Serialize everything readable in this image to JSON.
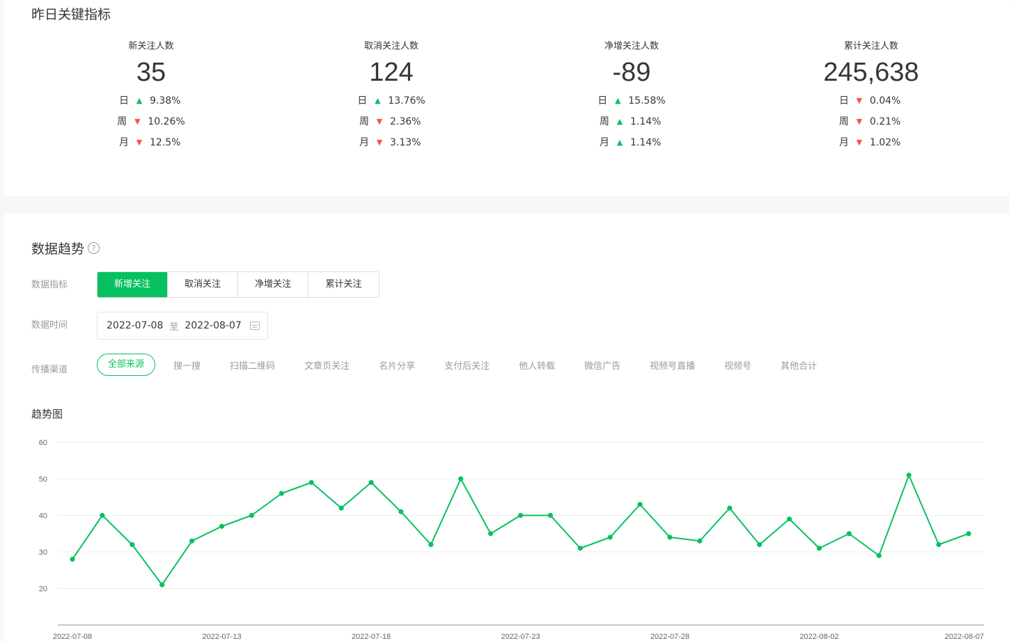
{
  "kpi_section": {
    "title": "昨日关键指标",
    "items": [
      {
        "label": "新关注人数",
        "value": "35",
        "rows": [
          {
            "period": "日",
            "dir": "up",
            "pct": "9.38%"
          },
          {
            "period": "周",
            "dir": "down",
            "pct": "10.26%"
          },
          {
            "period": "月",
            "dir": "down",
            "pct": "12.5%"
          }
        ]
      },
      {
        "label": "取消关注人数",
        "value": "124",
        "rows": [
          {
            "period": "日",
            "dir": "up",
            "pct": "13.76%"
          },
          {
            "period": "周",
            "dir": "down",
            "pct": "2.36%"
          },
          {
            "period": "月",
            "dir": "down",
            "pct": "3.13%"
          }
        ]
      },
      {
        "label": "净增关注人数",
        "value": "-89",
        "rows": [
          {
            "period": "日",
            "dir": "up",
            "pct": "15.58%"
          },
          {
            "period": "周",
            "dir": "up",
            "pct": "1.14%"
          },
          {
            "period": "月",
            "dir": "up",
            "pct": "1.14%"
          }
        ]
      },
      {
        "label": "累计关注人数",
        "value": "245,638",
        "rows": [
          {
            "period": "日",
            "dir": "down",
            "pct": "0.04%"
          },
          {
            "period": "周",
            "dir": "down",
            "pct": "0.21%"
          },
          {
            "period": "月",
            "dir": "down",
            "pct": "1.02%"
          }
        ]
      }
    ]
  },
  "trend_section": {
    "title": "数据趋势",
    "help_icon": "question-circle-icon",
    "help_symbol": "?",
    "metric_label": "数据指标",
    "metrics": [
      "新增关注",
      "取消关注",
      "净增关注",
      "累计关注"
    ],
    "active_metric": 0,
    "time_label": "数据时间",
    "date_start": "2022-07-08",
    "date_sep": "至",
    "date_end": "2022-08-07",
    "calendar_icon": "calendar-icon",
    "channel_label": "传播渠道",
    "channels": [
      "全部来源",
      "搜一搜",
      "扫描二维码",
      "文章页关注",
      "名片分享",
      "支付后关注",
      "他人转载",
      "微信广告",
      "视频号直播",
      "视频号",
      "其他合计"
    ],
    "active_channel": 0,
    "chart_title": "趋势图"
  },
  "colors": {
    "accent": "#07c160",
    "up": "#07c160",
    "down": "#fa5151",
    "text": "#353535",
    "muted": "#9a9a9a"
  },
  "chart_data": {
    "type": "line",
    "title": "趋势图",
    "x": [
      "2022-07-08",
      "2022-07-09",
      "2022-07-10",
      "2022-07-11",
      "2022-07-12",
      "2022-07-13",
      "2022-07-14",
      "2022-07-15",
      "2022-07-16",
      "2022-07-17",
      "2022-07-18",
      "2022-07-19",
      "2022-07-20",
      "2022-07-21",
      "2022-07-22",
      "2022-07-23",
      "2022-07-24",
      "2022-07-25",
      "2022-07-26",
      "2022-07-27",
      "2022-07-28",
      "2022-07-29",
      "2022-07-30",
      "2022-07-31",
      "2022-08-01",
      "2022-08-02",
      "2022-08-03",
      "2022-08-04",
      "2022-08-05",
      "2022-08-06",
      "2022-08-07"
    ],
    "x_tick_labels": [
      "2022-07-08",
      "2022-07-13",
      "2022-07-18",
      "2022-07-23",
      "2022-07-28",
      "2022-08-02",
      "2022-08-07"
    ],
    "series": [
      {
        "values": [
          28,
          40,
          32,
          21,
          33,
          37,
          40,
          46,
          49,
          42,
          49,
          41,
          32,
          50,
          35,
          40,
          40,
          31,
          34,
          43,
          34,
          33,
          42,
          32,
          39,
          31,
          35,
          29,
          51,
          32,
          35
        ]
      }
    ],
    "y_ticks": [
      20,
      30,
      40,
      50,
      60
    ],
    "ylim": [
      10,
      60
    ],
    "grid": true,
    "color": "#07c160"
  }
}
